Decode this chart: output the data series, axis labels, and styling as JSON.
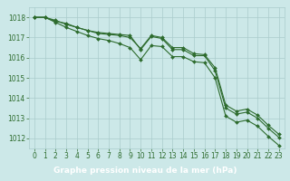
{
  "xlabel": "Graphe pression niveau de la mer (hPa)",
  "hours": [
    0,
    1,
    2,
    3,
    4,
    5,
    6,
    7,
    8,
    9,
    10,
    11,
    12,
    13,
    14,
    15,
    16,
    17,
    18,
    19,
    20,
    21,
    22,
    23
  ],
  "line1": [
    1018.0,
    1018.0,
    1017.8,
    1017.7,
    1017.5,
    1017.35,
    1017.25,
    1017.2,
    1017.15,
    1017.1,
    1016.4,
    1017.05,
    1016.95,
    1016.4,
    1016.4,
    1016.1,
    1016.1,
    1015.35,
    1013.5,
    1013.2,
    1013.3,
    1013.0,
    1012.5,
    1012.05
  ],
  "line2": [
    1018.0,
    1018.0,
    1017.85,
    1017.65,
    1017.5,
    1017.35,
    1017.2,
    1017.15,
    1017.1,
    1017.0,
    1016.45,
    1017.1,
    1017.0,
    1016.5,
    1016.5,
    1016.2,
    1016.15,
    1015.5,
    1013.65,
    1013.35,
    1013.45,
    1013.15,
    1012.65,
    1012.2
  ],
  "line3": [
    1018.0,
    1018.0,
    1017.75,
    1017.5,
    1017.3,
    1017.1,
    1016.95,
    1016.85,
    1016.7,
    1016.5,
    1015.9,
    1016.6,
    1016.55,
    1016.05,
    1016.05,
    1015.8,
    1015.75,
    1015.0,
    1013.1,
    1012.8,
    1012.9,
    1012.6,
    1012.1,
    1011.65
  ],
  "line_color": "#2d6b2d",
  "bg_color": "#cce8e8",
  "grid_major_color": "#aacccc",
  "grid_minor_color": "#bbdddd",
  "ylim": [
    1011.5,
    1018.5
  ],
  "yticks": [
    1012,
    1013,
    1014,
    1015,
    1016,
    1017,
    1018
  ],
  "xticks": [
    0,
    1,
    2,
    3,
    4,
    5,
    6,
    7,
    8,
    9,
    10,
    11,
    12,
    13,
    14,
    15,
    16,
    17,
    18,
    19,
    20,
    21,
    22,
    23
  ],
  "tick_fontsize": 5.5,
  "label_fontsize": 6.5,
  "markersize": 2.0,
  "linewidth": 0.8,
  "label_bg": "#336633",
  "label_text_color": "#ffffff"
}
